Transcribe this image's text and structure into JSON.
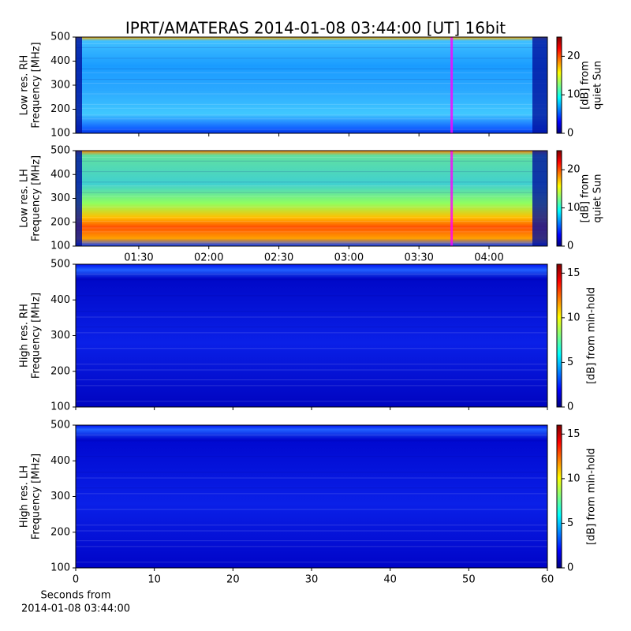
{
  "title": "IPRT/AMATERAS 2014-01-08 03:44:00 [UT]   16bit",
  "chart_data": [
    {
      "type": "heatmap",
      "ylabel": [
        "Low res. RH",
        "Frequency [MHz]"
      ],
      "xlim": [
        63,
        265
      ],
      "xticks": [
        90,
        120,
        150,
        180,
        210,
        240
      ],
      "show_xticklabels": false,
      "ylim": [
        100,
        500
      ],
      "yticks": [
        100,
        200,
        300,
        400,
        500
      ],
      "vline": {
        "value": 224,
        "color": "#ff00ff"
      },
      "colorbar": {
        "lim": [
          0,
          25
        ],
        "ticks": [
          0,
          10,
          20
        ],
        "label": [
          "[dB] from",
          "quiet Sun"
        ]
      }
    },
    {
      "type": "heatmap",
      "ylabel": [
        "Low res. LH",
        "Frequency [MHz]"
      ],
      "xlim": [
        63,
        265
      ],
      "xticks": [
        {
          "value": 90,
          "label": "01:30"
        },
        {
          "value": 120,
          "label": "02:00"
        },
        {
          "value": 150,
          "label": "02:30"
        },
        {
          "value": 180,
          "label": "03:00"
        },
        {
          "value": 210,
          "label": "03:30"
        },
        {
          "value": 240,
          "label": "04:00"
        }
      ],
      "show_xticklabels": true,
      "ylim": [
        100,
        500
      ],
      "yticks": [
        100,
        200,
        300,
        400,
        500
      ],
      "vline": {
        "value": 224,
        "color": "#ff00ff"
      },
      "colorbar": {
        "lim": [
          0,
          25
        ],
        "ticks": [
          0,
          10,
          20
        ],
        "label": [
          "[dB] from",
          "quiet Sun"
        ]
      }
    },
    {
      "type": "heatmap",
      "ylabel": [
        "High res. RH",
        "Frequency [MHz]"
      ],
      "xlim": [
        0,
        60
      ],
      "xticks": [
        0,
        10,
        20,
        30,
        40,
        50,
        60
      ],
      "show_xticklabels": false,
      "ylim": [
        100,
        500
      ],
      "yticks": [
        100,
        200,
        300,
        400,
        500
      ],
      "colorbar": {
        "lim": [
          0,
          16
        ],
        "ticks": [
          0,
          5,
          10,
          15
        ],
        "label": [
          "[dB] from min-hold"
        ]
      }
    },
    {
      "type": "heatmap",
      "ylabel": [
        "High res. LH",
        "Frequency [MHz]"
      ],
      "xlim": [
        0,
        60
      ],
      "xticks": [
        0,
        10,
        20,
        30,
        40,
        50,
        60
      ],
      "show_xticklabels": true,
      "xlabel": [
        "Seconds from",
        "2014-01-08 03:44:00"
      ],
      "ylim": [
        100,
        500
      ],
      "yticks": [
        100,
        200,
        300,
        400,
        500
      ],
      "colorbar": {
        "lim": [
          0,
          16
        ],
        "ticks": [
          0,
          5,
          10,
          15
        ],
        "label": [
          "[dB] from min-hold"
        ]
      }
    }
  ]
}
